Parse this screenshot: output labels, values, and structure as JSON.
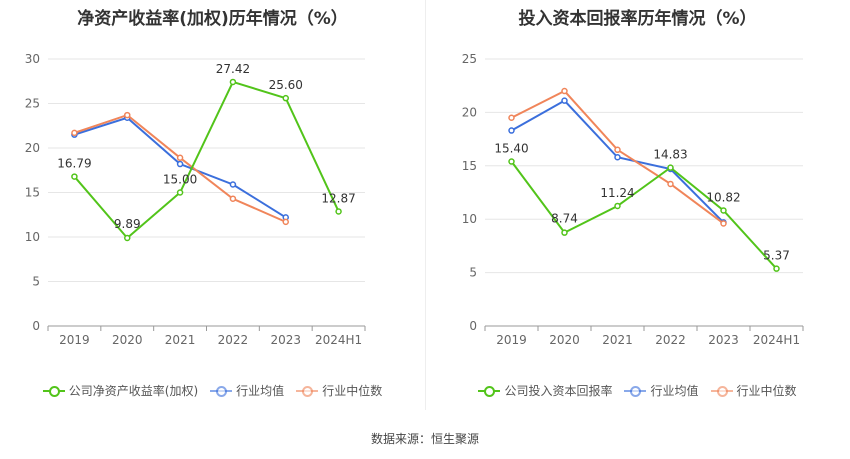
{
  "chart_data": [
    {
      "type": "line",
      "title": "净资产收益率(加权)历年情况（%）",
      "categories": [
        "2019",
        "2020",
        "2021",
        "2022",
        "2023",
        "2024H1"
      ],
      "y_ticks": [
        "0",
        "5",
        "10",
        "15",
        "20",
        "25",
        "30"
      ],
      "ylim": [
        0,
        30
      ],
      "grid": true,
      "legend_position": "bottom",
      "series": [
        {
          "name": "公司净资产收益率(加权)",
          "color": "#52c41a",
          "values": [
            16.79,
            9.89,
            15.0,
            27.42,
            25.6,
            12.87
          ],
          "labels": [
            "16.79",
            "9.89",
            "15.00",
            "27.42",
            "25.60",
            "12.87"
          ]
        },
        {
          "name": "行业均值",
          "color": "#3b6fdc",
          "values": [
            21.5,
            23.4,
            18.2,
            15.9,
            12.2,
            null
          ]
        },
        {
          "name": "行业中位数",
          "color": "#f0855a",
          "values": [
            21.7,
            23.7,
            18.9,
            14.3,
            11.7,
            null
          ]
        }
      ]
    },
    {
      "type": "line",
      "title": "投入资本回报率历年情况（%）",
      "categories": [
        "2019",
        "2020",
        "2021",
        "2022",
        "2023",
        "2024H1"
      ],
      "y_ticks": [
        "0",
        "5",
        "10",
        "15",
        "20",
        "25"
      ],
      "ylim": [
        0,
        25
      ],
      "grid": true,
      "legend_position": "bottom",
      "series": [
        {
          "name": "公司投入资本回报率",
          "color": "#52c41a",
          "values": [
            15.4,
            8.74,
            11.24,
            14.83,
            10.82,
            5.37
          ],
          "labels": [
            "15.40",
            "8.74",
            "11.24",
            "14.83",
            "10.82",
            "5.37"
          ]
        },
        {
          "name": "行业均值",
          "color": "#3b6fdc",
          "values": [
            18.3,
            21.1,
            15.8,
            14.7,
            9.7,
            null
          ]
        },
        {
          "name": "行业中位数",
          "color": "#f0855a",
          "values": [
            19.5,
            22.0,
            16.5,
            13.3,
            9.6,
            null
          ]
        }
      ]
    }
  ],
  "footer": {
    "source": "数据来源：恒生聚源"
  }
}
